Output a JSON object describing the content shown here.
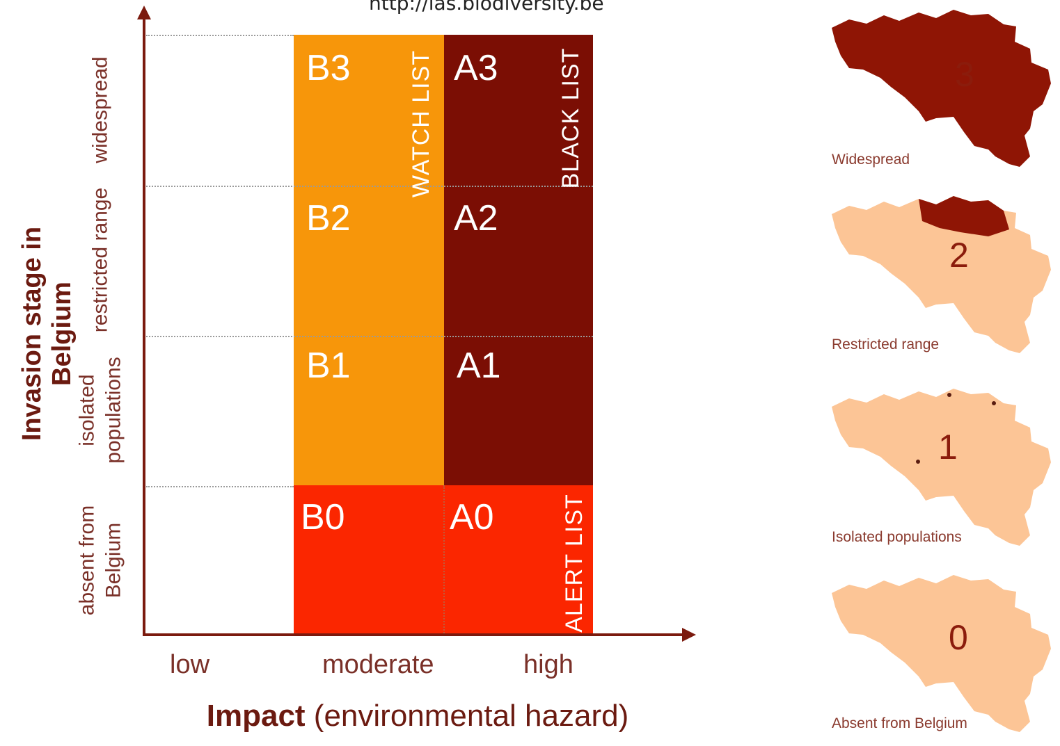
{
  "url": "http://ias.biodiversity.be",
  "y_axis": {
    "title": "Invasion stage in Belgium",
    "ticks": [
      "widespread",
      "restricted range",
      "isolated populations",
      "absent from Belgium"
    ]
  },
  "x_axis": {
    "title_bold": "Impact",
    "title_rest": " (environmental hazard)",
    "ticks": [
      "low",
      "moderate",
      "high"
    ]
  },
  "cells": {
    "B3": "B3",
    "B2": "B2",
    "B1": "B1",
    "B0": "B0",
    "A3": "A3",
    "A2": "A2",
    "A1": "A1",
    "A0": "A0"
  },
  "lists": {
    "watch": "WATCH LIST",
    "black": "BLACK LIST",
    "alert": "ALERT LIST"
  },
  "maps": [
    {
      "number": "3",
      "caption": "Widespread"
    },
    {
      "number": "2",
      "caption": "Restricted range"
    },
    {
      "number": "1",
      "caption": "Isolated populations"
    },
    {
      "number": "0",
      "caption": "Absent from Belgium"
    }
  ],
  "colors": {
    "watch": "#f7960a",
    "black": "#7b0e04",
    "alert": "#fb2600",
    "axis": "#7b1a0e",
    "map_full": "#8f1505",
    "map_empty": "#fcc596"
  }
}
